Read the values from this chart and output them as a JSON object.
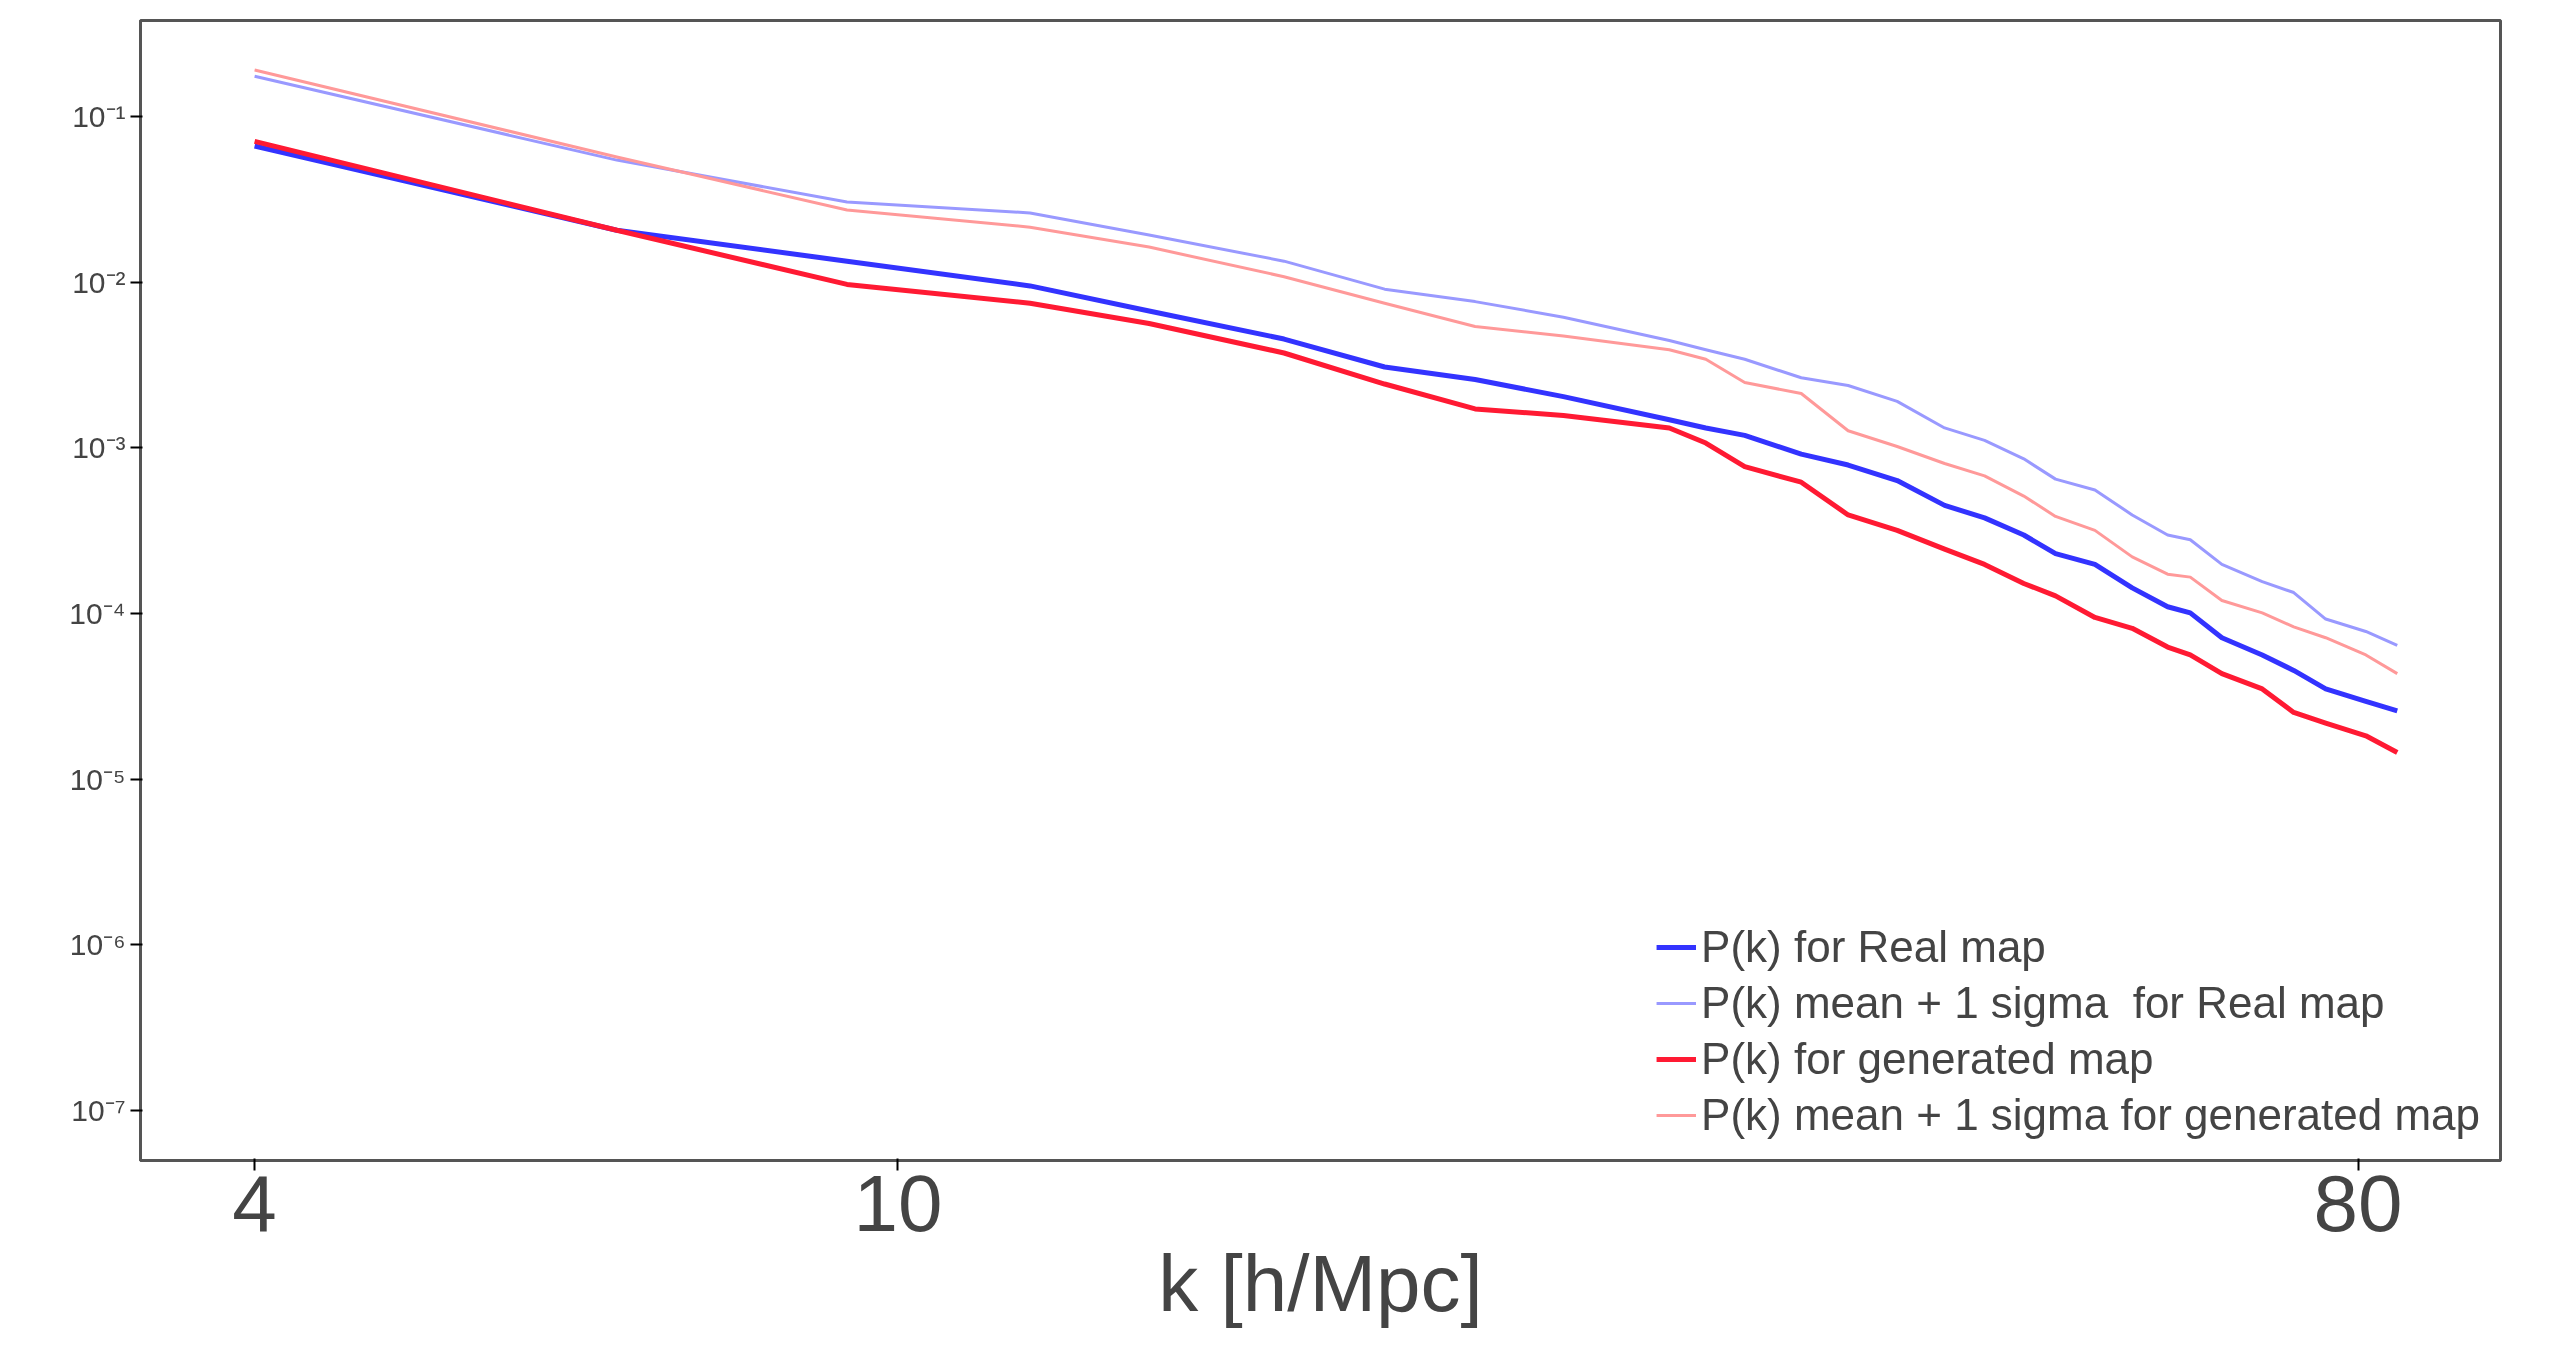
{
  "chart_data": {
    "type": "line",
    "xlabel": "k [h/Mpc]",
    "log": "xy",
    "grid": false,
    "legend": "bottom right",
    "line_style": "solid",
    "marker": "none",
    "x": [
      4.0,
      6.7,
      9.3,
      12.07,
      14.3,
      17.33,
      20.0,
      22.75,
      25.8,
      30.0,
      31.6,
      33.4,
      36.2,
      38.7,
      41.5,
      44.4,
      47.0,
      49.7,
      52.0,
      55.0,
      58.0,
      61.0,
      63.0,
      65.9,
      69.8,
      73.0,
      76.4,
      80.9,
      84.6
    ],
    "xlim": [
      3.4,
      98
    ],
    "xticks": [
      4,
      10,
      80
    ],
    "ylim": [
      5e-08,
      0.38
    ],
    "yticks": [
      {
        "value": 0.1,
        "label": "10⁻¹"
      },
      {
        "value": 0.01,
        "label": "10⁻²"
      },
      {
        "value": 0.001,
        "label": "10⁻³"
      },
      {
        "value": 0.0001,
        "label": "10⁻⁴"
      },
      {
        "value": 1e-05,
        "label": "10⁻⁵"
      },
      {
        "value": 1e-06,
        "label": "10⁻⁶"
      },
      {
        "value": 1e-07,
        "label": "10⁻⁷"
      }
    ],
    "series": [
      {
        "name": "P(k) for Real map",
        "color": "#3333ff",
        "values": [
          0.0664,
          0.0206,
          0.0134,
          0.0095,
          0.0067,
          0.00454,
          0.00308,
          0.00259,
          0.00204,
          0.00148,
          0.00132,
          0.00119,
          0.000917,
          0.000788,
          0.000635,
          0.00045,
          0.000378,
          0.000298,
          0.00023,
          0.000198,
          0.000143,
          0.00011,
          0.000101,
          7.15e-05,
          5.63e-05,
          4.54e-05,
          3.51e-05,
          2.95e-05,
          2.59e-05
        ]
      },
      {
        "name": "P(k) mean + 1 sigma  for Real map",
        "color": "#9999ff",
        "values": [
          0.175,
          0.0546,
          0.0305,
          0.0262,
          0.0193,
          0.0134,
          0.00908,
          0.00764,
          0.00615,
          0.00445,
          0.00391,
          0.00343,
          0.00265,
          0.00238,
          0.00191,
          0.00132,
          0.00111,
          0.000859,
          0.000648,
          0.000557,
          0.000394,
          0.000298,
          0.000279,
          0.000198,
          0.000156,
          0.000134,
          9.27e-05,
          7.8e-05,
          6.42e-05
        ]
      },
      {
        "name": "P(k) for generated map",
        "color": "#ff1a33",
        "values": [
          0.0708,
          0.0206,
          0.0097,
          0.00747,
          0.00564,
          0.00374,
          0.00243,
          0.00172,
          0.00157,
          0.00132,
          0.00107,
          0.000771,
          0.000621,
          0.000394,
          0.000318,
          0.000245,
          0.000198,
          0.000152,
          0.000128,
          9.48e-05,
          8.15e-05,
          6.28e-05,
          5.63e-05,
          4.34e-05,
          3.51e-05,
          2.53e-05,
          2.18e-05,
          1.83e-05,
          1.45e-05
        ]
      },
      {
        "name": "P(k) mean + 1 sigma for generated map",
        "color": "#ff9999",
        "values": [
          0.191,
          0.057,
          0.0273,
          0.0215,
          0.0163,
          0.0108,
          0.00747,
          0.0054,
          0.00474,
          0.00391,
          0.00343,
          0.00248,
          0.00213,
          0.00127,
          0.00102,
          0.000805,
          0.000678,
          0.000512,
          0.000386,
          0.000318,
          0.00022,
          0.000173,
          0.000166,
          0.00012,
          0.000101,
          8.32e-05,
          7.15e-05,
          5.63e-05,
          4.34e-05
        ]
      }
    ]
  }
}
